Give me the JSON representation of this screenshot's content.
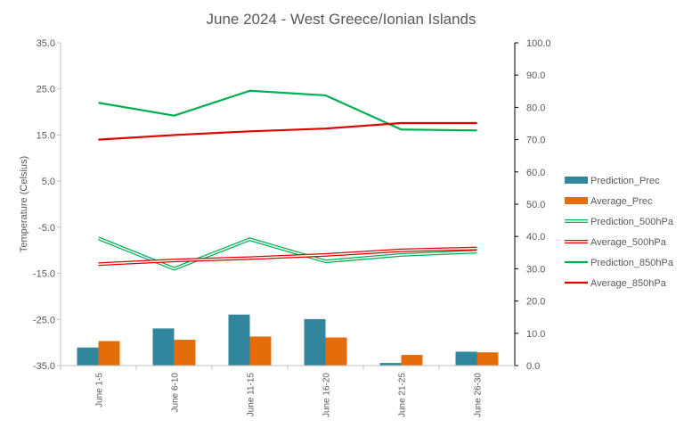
{
  "chart_data": {
    "type": "bar+line",
    "title": "June 2024 - West Greece/Ionian Islands",
    "ylabel": "Temperature (Celsius)",
    "y2label": "",
    "categories": [
      "June 1-5",
      "June 6-10",
      "June 11-15",
      "June 16-20",
      "June 21-25",
      "June 26-30"
    ],
    "ylim": [
      -35,
      35
    ],
    "y2lim": [
      0,
      100
    ],
    "yticks": [
      "35.0",
      "25.0",
      "15.0",
      "5.0",
      "-5.0",
      "-15.0",
      "-25.0",
      "-35.0"
    ],
    "y2ticks": [
      "100.0",
      "90.0",
      "80.0",
      "70.0",
      "60.0",
      "50.0",
      "40.0",
      "30.0",
      "20.0",
      "10.0",
      "0.0"
    ],
    "legend_position": "right",
    "grid": false,
    "series": [
      {
        "name": "Prediction_Prec",
        "kind": "bar",
        "axis": "right",
        "color": "#31859C",
        "values": [
          5.6,
          11.5,
          15.8,
          14.4,
          0.8,
          4.3
        ]
      },
      {
        "name": "Average_Prec",
        "kind": "bar",
        "axis": "right",
        "color": "#E46C0A",
        "values": [
          7.6,
          8.0,
          9.0,
          8.7,
          3.3,
          4.1
        ]
      },
      {
        "name": "Prediction_500hPa",
        "kind": "line",
        "style": "double",
        "axis": "left",
        "color": "#00B050",
        "values": [
          -7.4,
          -14.0,
          -7.6,
          -12.4,
          -11.0,
          -10.3
        ]
      },
      {
        "name": "Average_500hPa",
        "kind": "line",
        "style": "double",
        "axis": "left",
        "color": "#E00000",
        "values": [
          -13.0,
          -12.2,
          -11.7,
          -11.0,
          -10.0,
          -9.6
        ]
      },
      {
        "name": "Prediction_850hPa",
        "kind": "line",
        "axis": "left",
        "color": "#00B050",
        "values": [
          22.0,
          19.2,
          24.6,
          23.6,
          16.2,
          16.0
        ]
      },
      {
        "name": "Average_850hPa",
        "kind": "line",
        "axis": "left",
        "color": "#E00000",
        "values": [
          14.0,
          15.0,
          15.8,
          16.4,
          17.6,
          17.6
        ]
      }
    ]
  }
}
